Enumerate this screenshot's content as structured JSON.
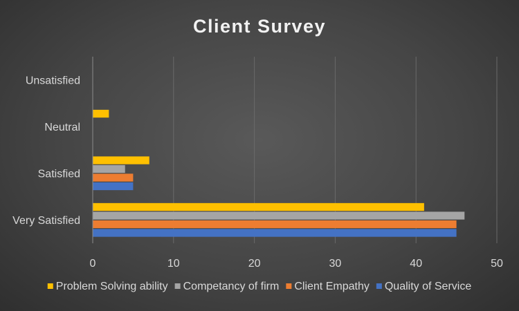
{
  "chart_data": {
    "type": "bar",
    "orientation": "horizontal",
    "title": "Client Survey",
    "xlabel": "",
    "ylabel": "",
    "categories": [
      "Very Satisfied",
      "Satisfied",
      "Neutral",
      "Unsatisfied"
    ],
    "series": [
      {
        "name": "Quality of Service",
        "values": [
          45,
          5,
          0,
          0
        ],
        "color": "#4472C4"
      },
      {
        "name": "Client Empathy",
        "values": [
          45,
          5,
          0,
          0
        ],
        "color": "#ED7D31"
      },
      {
        "name": "Competancy of firm",
        "values": [
          46,
          4,
          0,
          0
        ],
        "color": "#A5A5A5"
      },
      {
        "name": "Problem Solving ability",
        "values": [
          41,
          7,
          2,
          0
        ],
        "color": "#FFC000"
      }
    ],
    "xlim": [
      0,
      50
    ],
    "xticks": [
      0,
      10,
      20,
      30,
      40,
      50
    ],
    "grid": true,
    "legend_position": "bottom",
    "legend_order": [
      "Problem Solving ability",
      "Competancy of firm",
      "Client Empathy",
      "Quality of Service"
    ],
    "colors": {
      "background": "#404040",
      "text": "#D9D9D9",
      "title": "#F2F2F2",
      "grid": "#6A6A6A"
    }
  }
}
